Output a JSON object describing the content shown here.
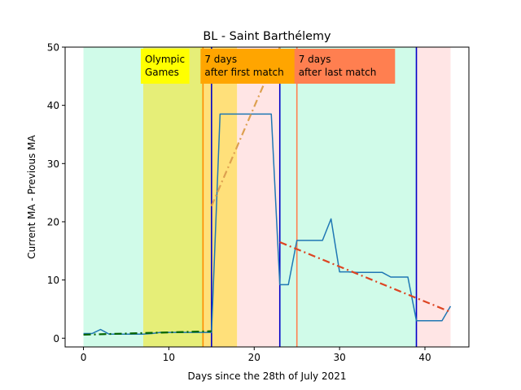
{
  "chart_data": {
    "type": "line",
    "title": "BL - Saint Barthélemy",
    "xlabel": "Days since the 28th of July 2021",
    "ylabel": "Current MA - Previous MA",
    "xlim": [
      -2.15,
      45.15
    ],
    "ylim": [
      -1.5,
      50
    ],
    "xticks": [
      0,
      10,
      20,
      30,
      40
    ],
    "yticks": [
      0,
      10,
      20,
      30,
      40,
      50
    ],
    "grid": false,
    "bands": [
      {
        "x0": 0,
        "x1": 7,
        "color": "#d0fbe9"
      },
      {
        "x0": 7,
        "x1": 14,
        "color": "#e6ee78"
      },
      {
        "x0": 14,
        "x1": 18,
        "color": "#ffe07a"
      },
      {
        "x0": 18,
        "x1": 23,
        "color": "#ffe5e5"
      },
      {
        "x0": 23,
        "x1": 39,
        "color": "#d0fbe9"
      },
      {
        "x0": 39,
        "x1": 43,
        "color": "#ffe5e5"
      }
    ],
    "vlines": [
      {
        "x": 14,
        "color": "#ff8c00"
      },
      {
        "x": 15,
        "color": "#0000c8"
      },
      {
        "x": 23,
        "color": "#0000c8"
      },
      {
        "x": 25,
        "color": "#ff7f50"
      },
      {
        "x": 39,
        "color": "#0000c8"
      }
    ],
    "annotations": [
      {
        "x": 7,
        "lines": [
          "Olympic",
          "Games"
        ],
        "bg": "#ffff00"
      },
      {
        "x": 14,
        "lines": [
          "7 days",
          "after first match"
        ],
        "bg": "#ffa500"
      },
      {
        "x": 25,
        "lines": [
          "7 days",
          "after last match"
        ],
        "bg": "#ff7f50"
      }
    ],
    "series": [
      {
        "color": "#1f77b4",
        "style": "solid",
        "x": [
          0,
          1,
          2,
          3,
          4,
          5,
          6,
          7,
          8,
          9,
          10,
          11,
          12,
          13,
          14,
          15,
          16,
          17,
          18,
          19,
          20,
          21,
          22,
          23,
          24,
          25,
          26,
          27,
          28,
          29,
          30,
          31,
          32,
          33,
          34,
          35,
          36,
          37,
          38,
          39,
          40,
          41,
          42,
          43
        ],
        "values": [
          0.8,
          0.8,
          1.5,
          0.7,
          0.7,
          0.7,
          0.7,
          0.7,
          0.8,
          1.0,
          1.0,
          1.0,
          1.0,
          1.0,
          1.0,
          1.0,
          38.5,
          38.5,
          38.5,
          38.5,
          38.5,
          38.5,
          38.5,
          9.2,
          9.2,
          16.8,
          16.8,
          16.8,
          16.8,
          20.5,
          11.4,
          11.4,
          11.3,
          11.3,
          11.3,
          11.3,
          10.5,
          10.5,
          10.5,
          3.0,
          3.0,
          3.0,
          3.0,
          5.5
        ]
      },
      {
        "color": "#006400",
        "style": "dashdot",
        "x": [
          0,
          15
        ],
        "values": [
          0.6,
          1.2
        ]
      },
      {
        "color": "#dda050",
        "style": "dashdot",
        "x": [
          15,
          23
        ],
        "values": [
          22.7,
          50
        ]
      },
      {
        "color": "#dd4422",
        "style": "dashdot",
        "x": [
          23,
          43
        ],
        "values": [
          16.5,
          4.5
        ]
      }
    ]
  }
}
